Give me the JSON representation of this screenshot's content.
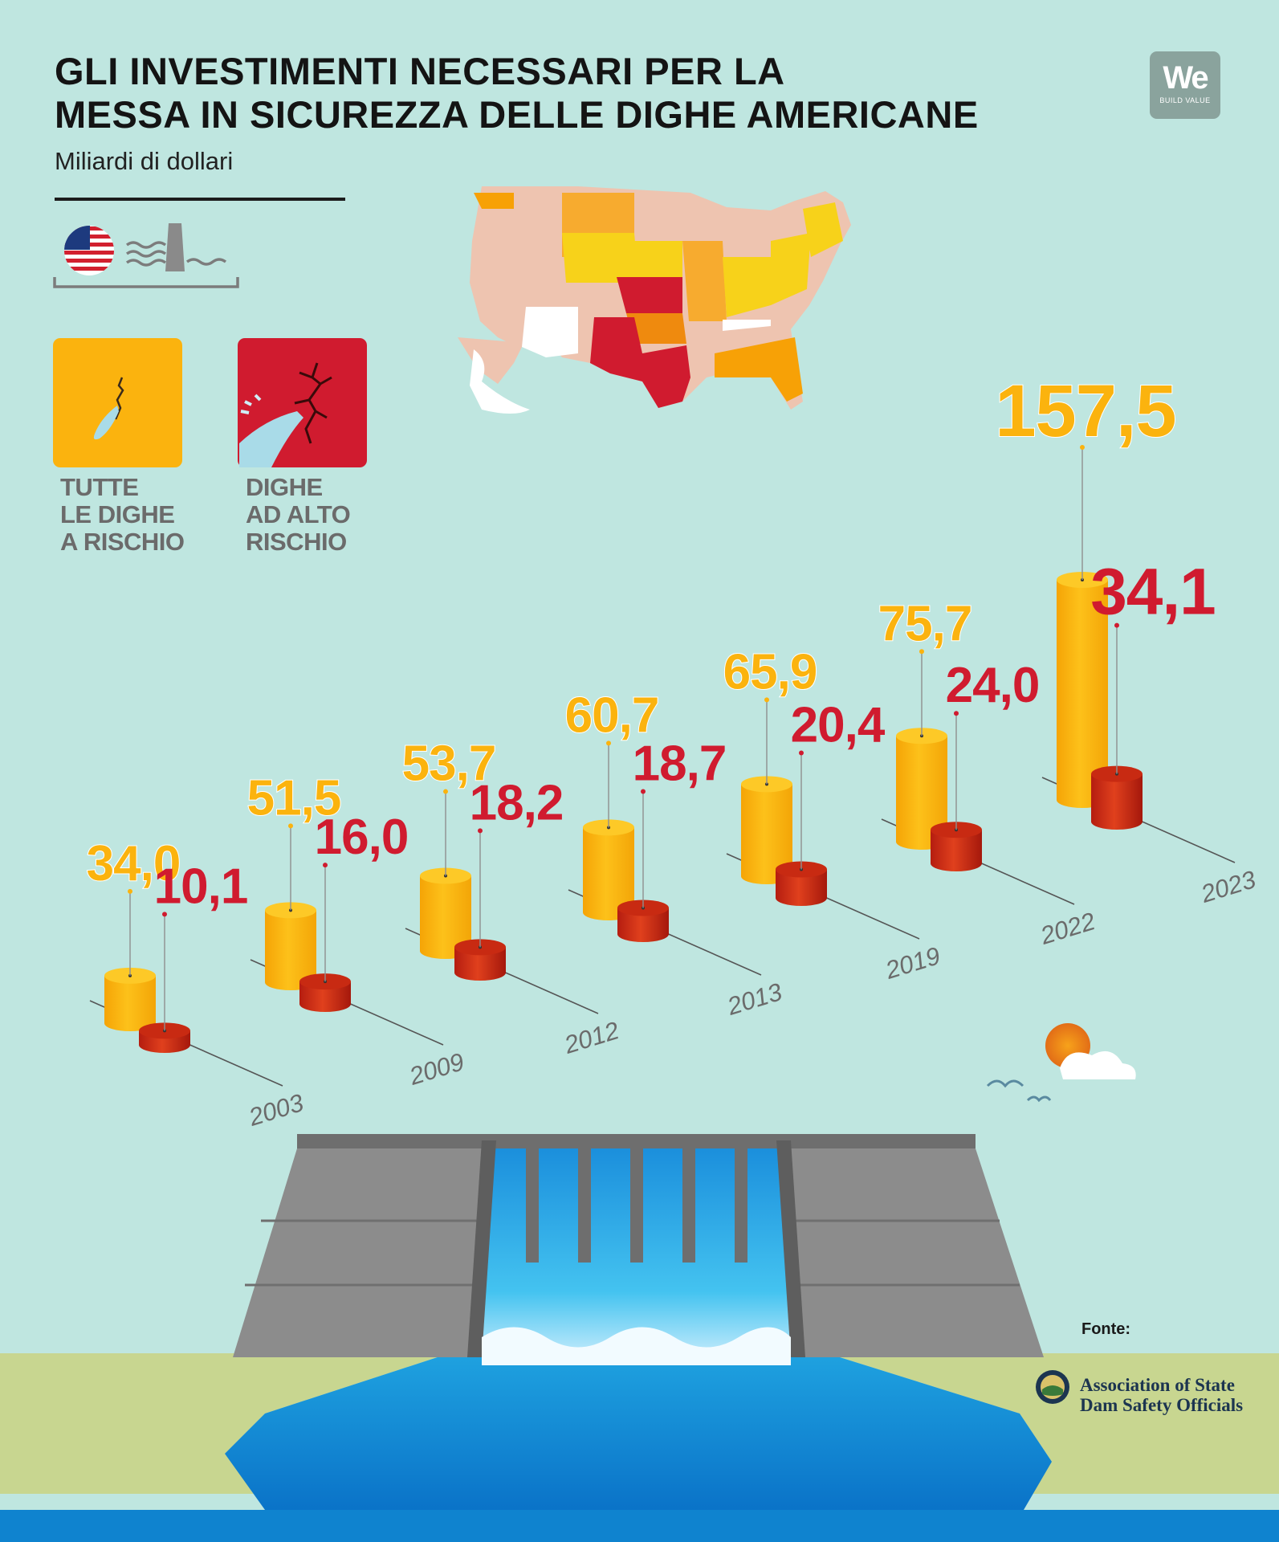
{
  "title_lines": [
    "GLI INVESTIMENTI NECESSARI PER LA",
    "MESSA IN SICUREZZA DELLE DIGHE AMERICANE"
  ],
  "subtitle": "Miliardi di dollari",
  "logo": {
    "text": "We",
    "tagline": "BUILD VALUE"
  },
  "legend": [
    {
      "lines": [
        "TUTTE",
        "LE DIGHE",
        "A RISCHIO"
      ],
      "color": "#fbb30e",
      "icon": "cracked-dam-icon"
    },
    {
      "lines": [
        "DIGHE",
        "AD ALTO",
        "RISCHIO"
      ],
      "color": "#d01b2f",
      "icon": "bursting-dam-icon"
    }
  ],
  "source": {
    "label": "Fonte:",
    "org_lines": [
      "Association of State",
      "Dam Safety Officials"
    ]
  },
  "colors": {
    "all_dams": "#fbb30e",
    "high_hazard": "#d01b2f",
    "background": "#bfe6e0",
    "grass": "#c8d690",
    "water": "#1ea5e1"
  },
  "chart_data": {
    "type": "bar",
    "style": "3d-cylinders",
    "categories": [
      "2003",
      "2009",
      "2012",
      "2013",
      "2019",
      "2022",
      "2023"
    ],
    "series": [
      {
        "name": "TUTTE LE DIGHE A RISCHIO",
        "values": [
          34.0,
          51.5,
          53.7,
          60.7,
          65.9,
          75.7,
          157.5
        ],
        "labels": [
          "34,0",
          "51,5",
          "53,7",
          "60,7",
          "65,9",
          "75,7",
          "157,5"
        ],
        "color": "#fbb30e"
      },
      {
        "name": "DIGHE AD ALTO RISCHIO",
        "values": [
          10.1,
          16.0,
          18.2,
          18.7,
          20.4,
          24.0,
          34.1
        ],
        "labels": [
          "10,1",
          "16,0",
          "18,2",
          "18,7",
          "20,4",
          "24,0",
          "34,1"
        ],
        "color": "#d01b2f"
      }
    ],
    "ylabel": "Miliardi di dollari",
    "grid": false,
    "legend_position": "top-left"
  }
}
